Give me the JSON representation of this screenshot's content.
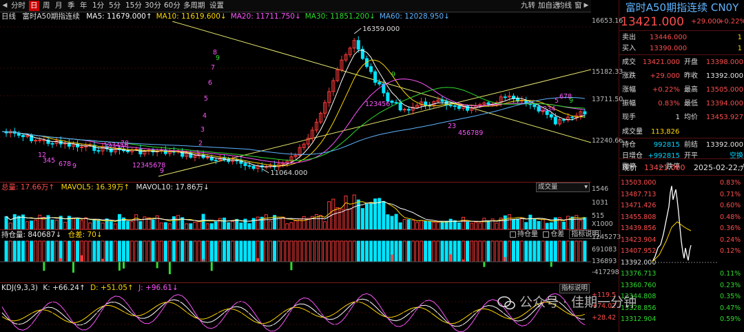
{
  "toolbar": {
    "items": [
      "分时",
      "日",
      "周",
      "月",
      "季",
      "年",
      "1分",
      "5分",
      "15分",
      "30分",
      "60分",
      "多周期",
      "设置"
    ],
    "active_index": 1,
    "right_items": [
      "九转",
      "加自选",
      "均线",
      "窗"
    ]
  },
  "main": {
    "label": "日线",
    "title": "富时A50期指连续",
    "ma": [
      {
        "text": "MA5: 11679.000↑",
        "color": "#ffffff"
      },
      {
        "text": "MA10: 11619.600↓",
        "color": "#ffd800"
      },
      {
        "text": "MA20: 11711.750↓",
        "color": "#ff55ff"
      },
      {
        "text": "MA30: 11851.200↓",
        "color": "#2edc2e"
      },
      {
        "text": "MA60: 12028.950↓",
        "color": "#5fb4ff"
      }
    ],
    "high_label": "16359.000",
    "low_label": "11064.000",
    "axis": [
      "16653.16",
      "15182.33",
      "13711.50",
      "12240.66"
    ],
    "nine_counts": [
      {
        "t": "12",
        "c": "#ff55ff"
      },
      {
        "t": "345",
        "c": "#ff55ff"
      },
      {
        "t": "678",
        "c": "#ff55ff"
      },
      {
        "t": "9",
        "c": "#ff55ff"
      },
      {
        "t": "123456",
        "c": "#ff55ff"
      },
      {
        "t": "78",
        "c": "#ff55ff"
      },
      {
        "t": "12345678",
        "c": "#ff55ff"
      },
      {
        "t": "9",
        "c": "#ff55ff"
      },
      {
        "t": "1",
        "c": "#ff55ff"
      },
      {
        "t": "2",
        "c": "#ff55ff"
      },
      {
        "t": "3",
        "c": "#ff55ff"
      },
      {
        "t": "4",
        "c": "#ff55ff"
      },
      {
        "t": "5",
        "c": "#ff55ff"
      },
      {
        "t": "6",
        "c": "#ff55ff"
      },
      {
        "t": "7",
        "c": "#ff55ff"
      },
      {
        "t": "8",
        "c": "#ff55ff"
      },
      {
        "t": "9",
        "c": "#2edc2e"
      },
      {
        "t": "123456",
        "c": "#ff55ff"
      },
      {
        "t": "9",
        "c": "#2edc2e"
      },
      {
        "t": "23",
        "c": "#ff55ff"
      },
      {
        "t": "456789",
        "c": "#ff55ff"
      },
      {
        "t": "1234",
        "c": "#ff55ff"
      },
      {
        "t": "5",
        "c": "#ff55ff"
      },
      {
        "t": "678",
        "c": "#ff55ff"
      },
      {
        "t": "9",
        "c": "#2edc2e"
      }
    ]
  },
  "volume": {
    "label": "总量: 17.66万↑",
    "mavol5": "MAVOL5: 16.39万↑",
    "mavol10": "MAVOL10: 17.86万↓",
    "dropdown": "成交量",
    "axis": [
      "1546",
      "1031",
      "515",
      "X1000"
    ]
  },
  "oi": {
    "label": "持仓量: 840687↓",
    "diff": "仓差: 70↓",
    "check1": "持仓量",
    "check2": "仓差",
    "btn": "指标说明",
    "axis": [
      "1245273",
      "691083",
      "136893",
      "-417298"
    ]
  },
  "kdj": {
    "label": "KDJ(9,3,3)",
    "k": "K: +66.24↑",
    "d": "D: +51.05↑",
    "j": "J: +96.61↓",
    "btn": "指标说明",
    "axis": [
      "+119.5",
      "+74.02",
      "+28.42"
    ]
  },
  "panel": {
    "title": "富时A50期指连续  CN0Y",
    "price": "13421.000",
    "change": "+29.000",
    "pct": "+0.22%",
    "sell": {
      "label": "卖出",
      "price": "13446.000",
      "vol": "1"
    },
    "buy": {
      "label": "买入",
      "price": "13390.000",
      "vol": "1"
    },
    "rows": [
      {
        "l1": "成交",
        "v1": "13421.000",
        "l2": "开盘",
        "v2": "13398.000",
        "c1": "red",
        "c2": "red"
      },
      {
        "l1": "涨跌",
        "v1": "+29.000",
        "l2": "昨收",
        "v2": "13392.000",
        "c1": "red",
        "c2": "white"
      },
      {
        "l1": "涨幅",
        "v1": "+0.22%",
        "l2": "最高",
        "v2": "13505.000",
        "c1": "red",
        "c2": "red"
      },
      {
        "l1": "振幅",
        "v1": "0.83%",
        "l2": "最低",
        "v2": "13394.000",
        "c1": "red",
        "c2": "red"
      },
      {
        "l1": "现手",
        "v1": "1",
        "l2": "均价",
        "v2": "13453.927",
        "c1": "white",
        "c2": "red"
      }
    ],
    "volume": {
      "l": "成交量",
      "v": "113,826"
    },
    "rows2": [
      {
        "l1": "持仓",
        "v1": "992815",
        "l2": "前结",
        "v2": "13392.000",
        "c1": "cyan",
        "c2": "white"
      },
      {
        "l1": "日增仓",
        "v1": "+992815",
        "l2": "开平",
        "v2": "空换",
        "c1": "cyan",
        "c2": "cyan"
      },
      {
        "l1": "涨停",
        "v1": "-- 跌停",
        "l2": "",
        "v2": "--",
        "c1": "white",
        "c2": "white"
      }
    ],
    "now": {
      "label": "现价",
      "price": "13421.000",
      "date": "2025-02-22,六"
    },
    "mini_left": [
      "13503.000",
      "13487.713",
      "13471.426",
      "13455.808",
      "13439.856",
      "13423.904",
      "13407.952",
      "13392.000",
      "13376.713",
      "13360.760",
      "13344.808",
      "13328.856",
      "13312.904"
    ],
    "mini_right": [
      "0.83%",
      "0.71%",
      "0.60%",
      "0.48%",
      "0.36%",
      "0.24%",
      "0.12%",
      "",
      "0.11%",
      "0.23%",
      "0.35%",
      "0.47%",
      "0.59%"
    ]
  },
  "watermark": "公众号 · 佳期一分钟"
}
